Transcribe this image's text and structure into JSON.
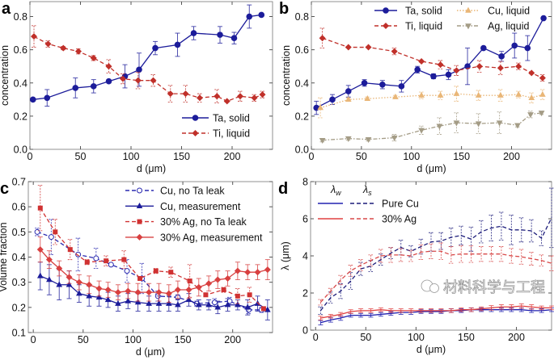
{
  "figure": {
    "watermark": "材料科学与工程",
    "watermark_icon": "wechat-icon"
  },
  "chart_data": [
    {
      "type": "line",
      "panel": "a",
      "title": "",
      "xlabel": "d (μm)",
      "ylabel": "concentration",
      "xlim": [
        0,
        240
      ],
      "ylim": [
        0,
        0.89
      ],
      "xticks": [
        "0",
        "50",
        "100",
        "150",
        "200"
      ],
      "yticks": [
        "0.0",
        "0.2",
        "0.4",
        "0.6",
        "0.8"
      ],
      "grid": false,
      "legend_position": "bottom-right",
      "series": [
        {
          "name": "Ta, solid",
          "color": "#1c1c9a",
          "style": "solid",
          "marker": "circle",
          "x": [
            3,
            17,
            45,
            63,
            78,
            94,
            108,
            124,
            146,
            162,
            188,
            202,
            217,
            229
          ],
          "y": [
            0.3,
            0.31,
            0.37,
            0.38,
            0.41,
            0.44,
            0.48,
            0.61,
            0.63,
            0.7,
            0.69,
            0.67,
            0.8,
            0.81
          ],
          "err": [
            0.005,
            0.05,
            0.06,
            0.04,
            0.01,
            0.07,
            0.1,
            0.04,
            0.07,
            0.04,
            0.05,
            0.035,
            0.07,
            0.01
          ]
        },
        {
          "name": "Ti, liquid",
          "color": "#c0302a",
          "style": "dashed",
          "marker": "diamond",
          "x": [
            4,
            18,
            33,
            48,
            63,
            78,
            92,
            107,
            122,
            139,
            154,
            168,
            185,
            195,
            208,
            222,
            230
          ],
          "y": [
            0.68,
            0.635,
            0.61,
            0.59,
            0.55,
            0.5,
            0.425,
            0.415,
            0.415,
            0.335,
            0.335,
            0.31,
            0.32,
            0.29,
            0.32,
            0.31,
            0.33
          ],
          "err": [
            0.065,
            0.02,
            0.01,
            0.015,
            0.015,
            0.04,
            0.03,
            0.05,
            0.035,
            0.05,
            0.05,
            0.025,
            0.04,
            0.005,
            0.03,
            0.02,
            0.02
          ]
        }
      ]
    },
    {
      "type": "line",
      "panel": "b",
      "title": "",
      "xlabel": "d (μm)",
      "ylabel": "concentration",
      "xlim": [
        0,
        240
      ],
      "ylim": [
        0,
        0.89
      ],
      "xticks": [
        "0",
        "50",
        "100",
        "150",
        "200"
      ],
      "yticks": [
        "0.0",
        "0.2",
        "0.4",
        "0.6",
        "0.8"
      ],
      "grid": false,
      "legend_position": "top",
      "series": [
        {
          "name": "Ta, solid",
          "color": "#1c1c9a",
          "style": "solid",
          "marker": "circle",
          "x": [
            5,
            21,
            37,
            53,
            71,
            90,
            106,
            122,
            137,
            156,
            172,
            190,
            203,
            216,
            232
          ],
          "y": [
            0.25,
            0.3,
            0.35,
            0.4,
            0.39,
            0.38,
            0.48,
            0.44,
            0.45,
            0.5,
            0.61,
            0.56,
            0.625,
            0.61,
            0.79
          ],
          "err": [
            0.04,
            0.03,
            0.035,
            0.02,
            0.025,
            0.035,
            0.02,
            0.015,
            0.03,
            0.11,
            0.01,
            0.03,
            0.075,
            0.075,
            0.005
          ]
        },
        {
          "name": "Ti, liquid",
          "color": "#c0302a",
          "style": "dashed",
          "marker": "diamond",
          "x": [
            11,
            37,
            57,
            83,
            110,
            129,
            145,
            168,
            189,
            207,
            220,
            231
          ],
          "y": [
            0.67,
            0.615,
            0.615,
            0.59,
            0.53,
            0.51,
            0.475,
            0.5,
            0.49,
            0.5,
            0.46,
            0.43
          ],
          "err": [
            0.06,
            0.005,
            0.005,
            0.02,
            0.005,
            0.025,
            0.03,
            0.035,
            0.04,
            0.02,
            0.005,
            0.02
          ]
        },
        {
          "name": "Cu, liquid",
          "color": "#e9b677",
          "style": "dotted",
          "marker": "triangle-up",
          "x": [
            9,
            37,
            56,
            84,
            110,
            129,
            145,
            167,
            189,
            207,
            220,
            231
          ],
          "y": [
            0.25,
            0.3,
            0.305,
            0.315,
            0.325,
            0.325,
            0.335,
            0.325,
            0.325,
            0.33,
            0.31,
            0.33
          ],
          "err": [
            0.06,
            0.01,
            0.01,
            0.01,
            0.02,
            0.025,
            0.045,
            0.03,
            0.035,
            0.02,
            0.03,
            0.03
          ]
        },
        {
          "name": "Ag, liquid",
          "color": "#a49c86",
          "style": "dashdot",
          "marker": "triangle-down",
          "x": [
            11,
            37,
            57,
            83,
            110,
            128,
            145,
            167,
            188,
            206,
            219,
            230
          ],
          "y": [
            0.055,
            0.065,
            0.06,
            0.07,
            0.115,
            0.14,
            0.16,
            0.155,
            0.16,
            0.145,
            0.21,
            0.22
          ],
          "err": [
            0.01,
            0.01,
            0.01,
            0.02,
            0.025,
            0.05,
            0.06,
            0.06,
            0.065,
            0.01,
            0.02,
            0.01
          ]
        }
      ]
    },
    {
      "type": "line",
      "panel": "c",
      "title": "",
      "xlabel": "d (μm)",
      "ylabel": "Volume fraction",
      "xlim": [
        -5,
        240
      ],
      "ylim": [
        0.1,
        0.7
      ],
      "xticks": [
        "0",
        "50",
        "100",
        "150",
        "200"
      ],
      "yticks": [
        "0.1",
        "0.2",
        "0.3",
        "0.4",
        "0.5",
        "0.6",
        "0.7"
      ],
      "grid": false,
      "legend_position": "top-right",
      "series": [
        {
          "name": "Cu, no Ta leak",
          "color": "#2a2ab0",
          "style": "dashed",
          "marker": "open-circle",
          "x": [
            4,
            18,
            45,
            63,
            78,
            94,
            109,
            125,
            145,
            164,
            182,
            197,
            216,
            229
          ],
          "y": [
            0.5,
            0.48,
            0.41,
            0.395,
            0.37,
            0.345,
            0.315,
            0.245,
            0.24,
            0.215,
            0.22,
            0.225,
            0.19,
            0.19
          ],
          "err": [
            0.015,
            0.07,
            0.065,
            0.04,
            0.005,
            0.045,
            0.06,
            0.02,
            0.01,
            0.01,
            0.015,
            0.015,
            0.015,
            0.01
          ]
        },
        {
          "name": "Cu, measurement",
          "color": "#1c1c9a",
          "style": "solid",
          "marker": "triangle-up",
          "x": [
            7,
            16,
            26,
            36,
            46,
            56,
            66,
            75,
            85,
            95,
            105,
            116,
            126,
            136,
            145,
            156,
            166,
            176,
            185,
            195,
            205,
            215,
            225,
            235
          ],
          "y": [
            0.325,
            0.31,
            0.29,
            0.29,
            0.255,
            0.245,
            0.24,
            0.23,
            0.215,
            0.225,
            0.22,
            0.215,
            0.215,
            0.215,
            0.21,
            0.23,
            0.21,
            0.21,
            0.2,
            0.21,
            0.21,
            0.2,
            0.215,
            0.19
          ],
          "err": [
            0.055,
            0.06,
            0.06,
            0.055,
            0.035,
            0.04,
            0.035,
            0.03,
            0.03,
            0.03,
            0.035,
            0.03,
            0.03,
            0.03,
            0.025,
            0.025,
            0.02,
            0.02,
            0.025,
            0.025,
            0.02,
            0.03,
            0.03,
            0.04
          ]
        },
        {
          "name": "30% Ag, no Ta leak",
          "color": "#d03232",
          "style": "dashed",
          "marker": "square",
          "x": [
            7,
            22,
            37,
            54,
            73,
            91,
            107,
            123,
            138,
            157,
            173,
            191,
            205,
            217,
            231
          ],
          "y": [
            0.595,
            0.5,
            0.43,
            0.38,
            0.385,
            0.39,
            0.315,
            0.345,
            0.34,
            0.305,
            0.25,
            0.27,
            0.245,
            0.25,
            0.195
          ],
          "err": [
            0.09,
            0.05,
            0.04,
            0.01,
            0.02,
            0.035,
            0.005,
            0.01,
            0.02,
            0.065,
            0.005,
            0.01,
            0.03,
            0.03,
            0.005
          ]
        },
        {
          "name": "30% Ag, measurement",
          "color": "#d84040",
          "style": "solid",
          "marker": "diamond",
          "x": [
            7,
            16,
            26,
            36,
            46,
            56,
            66,
            75,
            85,
            95,
            105,
            116,
            126,
            136,
            145,
            156,
            166,
            176,
            185,
            195,
            205,
            215,
            225,
            235
          ],
          "y": [
            0.43,
            0.39,
            0.355,
            0.32,
            0.3,
            0.29,
            0.275,
            0.27,
            0.26,
            0.265,
            0.26,
            0.26,
            0.26,
            0.255,
            0.27,
            0.27,
            0.28,
            0.295,
            0.31,
            0.315,
            0.345,
            0.34,
            0.34,
            0.35
          ],
          "err": [
            0.05,
            0.035,
            0.03,
            0.025,
            0.03,
            0.035,
            0.03,
            0.03,
            0.03,
            0.03,
            0.035,
            0.035,
            0.035,
            0.035,
            0.035,
            0.035,
            0.035,
            0.03,
            0.035,
            0.03,
            0.035,
            0.03,
            0.03,
            0.04
          ]
        }
      ]
    },
    {
      "type": "line",
      "panel": "d",
      "title": "",
      "xlabel": "d (μm)",
      "ylabel": "λ (μm)",
      "xlim": [
        -5,
        235
      ],
      "ylim": [
        0,
        8
      ],
      "xticks": [
        "0",
        "50",
        "100",
        "150",
        "200"
      ],
      "yticks": [
        "0",
        "2",
        "4",
        "6",
        "8"
      ],
      "grid": false,
      "legend_position": "top-left",
      "legend_columns": [
        {
          "symbol": "λ",
          "sub": "w"
        },
        {
          "symbol": "λ",
          "sub": "s"
        }
      ],
      "legend_rows": [
        "Pure Cu",
        "30% Ag"
      ],
      "series": [
        {
          "legend_row": 0,
          "legend_col": 1,
          "color": "#1c1c7a",
          "style": "dashed",
          "marker": "none",
          "x": [
            5,
            15,
            25,
            35,
            45,
            55,
            65,
            75,
            85,
            95,
            105,
            115,
            125,
            135,
            145,
            155,
            165,
            175,
            185,
            195,
            205,
            215,
            225,
            235
          ],
          "y": [
            1.05,
            1.75,
            2.1,
            2.65,
            3.3,
            3.45,
            3.8,
            4.15,
            4.45,
            4.25,
            4.5,
            4.75,
            4.8,
            5.0,
            5.1,
            4.9,
            5.3,
            5.5,
            5.6,
            5.4,
            5.4,
            5.35,
            4.95,
            6.05
          ],
          "err": [
            0.2,
            0.3,
            0.4,
            0.45,
            0.35,
            0.3,
            0.3,
            0.3,
            0.4,
            0.3,
            0.4,
            0.5,
            0.45,
            0.5,
            0.5,
            0.65,
            0.6,
            0.7,
            0.75,
            0.8,
            0.65,
            0.6,
            0.4,
            1.6
          ]
        },
        {
          "legend_row": 1,
          "legend_col": 1,
          "color": "#d84848",
          "style": "dashed",
          "marker": "none",
          "x": [
            5,
            15,
            25,
            35,
            45,
            55,
            65,
            75,
            85,
            95,
            105,
            115,
            125,
            135,
            145,
            155,
            165,
            175,
            185,
            195,
            205,
            215,
            225,
            235
          ],
          "y": [
            1.5,
            2.1,
            2.7,
            3.2,
            3.5,
            3.75,
            4.0,
            4.05,
            4.05,
            4.0,
            4.2,
            4.25,
            4.25,
            4.05,
            4.1,
            4.1,
            4.1,
            4.1,
            4.1,
            4.0,
            3.95,
            3.85,
            3.75,
            3.6
          ],
          "err": [
            0.15,
            0.15,
            0.25,
            0.3,
            0.3,
            0.3,
            0.35,
            0.4,
            0.35,
            0.3,
            0.4,
            0.4,
            0.45,
            0.45,
            0.45,
            0.45,
            0.4,
            0.4,
            0.4,
            0.4,
            0.4,
            0.35,
            0.3,
            0.4
          ]
        },
        {
          "legend_row": 0,
          "legend_col": 0,
          "color": "#2020b0",
          "style": "solid",
          "marker": "none",
          "x": [
            5,
            15,
            25,
            35,
            45,
            55,
            65,
            75,
            85,
            95,
            105,
            115,
            125,
            135,
            145,
            155,
            165,
            175,
            185,
            195,
            205,
            215,
            225,
            235
          ],
          "y": [
            0.4,
            0.55,
            0.65,
            0.8,
            0.8,
            0.8,
            0.85,
            0.9,
            0.95,
            0.95,
            1.0,
            1.0,
            1.0,
            1.05,
            1.05,
            1.1,
            1.1,
            1.1,
            1.1,
            1.1,
            1.1,
            1.05,
            1.05,
            1.1
          ],
          "err": [
            0.12,
            0.12,
            0.12,
            0.1,
            0.1,
            0.1,
            0.1,
            0.1,
            0.1,
            0.1,
            0.1,
            0.1,
            0.1,
            0.1,
            0.1,
            0.1,
            0.1,
            0.1,
            0.1,
            0.1,
            0.1,
            0.1,
            0.1,
            0.1
          ]
        },
        {
          "legend_row": 1,
          "legend_col": 0,
          "color": "#e04040",
          "style": "solid",
          "marker": "none",
          "x": [
            5,
            15,
            25,
            35,
            45,
            55,
            65,
            75,
            85,
            95,
            105,
            115,
            125,
            135,
            145,
            155,
            165,
            175,
            185,
            195,
            205,
            215,
            225,
            235
          ],
          "y": [
            0.65,
            0.75,
            0.85,
            1.0,
            1.05,
            1.05,
            1.1,
            1.05,
            1.05,
            1.05,
            1.05,
            1.05,
            1.05,
            1.05,
            1.1,
            1.1,
            1.15,
            1.2,
            1.25,
            1.25,
            1.3,
            1.25,
            1.2,
            1.2
          ],
          "err": [
            0.1,
            0.1,
            0.1,
            0.1,
            0.1,
            0.1,
            0.1,
            0.1,
            0.1,
            0.1,
            0.1,
            0.1,
            0.1,
            0.1,
            0.1,
            0.1,
            0.1,
            0.12,
            0.12,
            0.12,
            0.12,
            0.12,
            0.1,
            0.1
          ]
        }
      ]
    }
  ]
}
